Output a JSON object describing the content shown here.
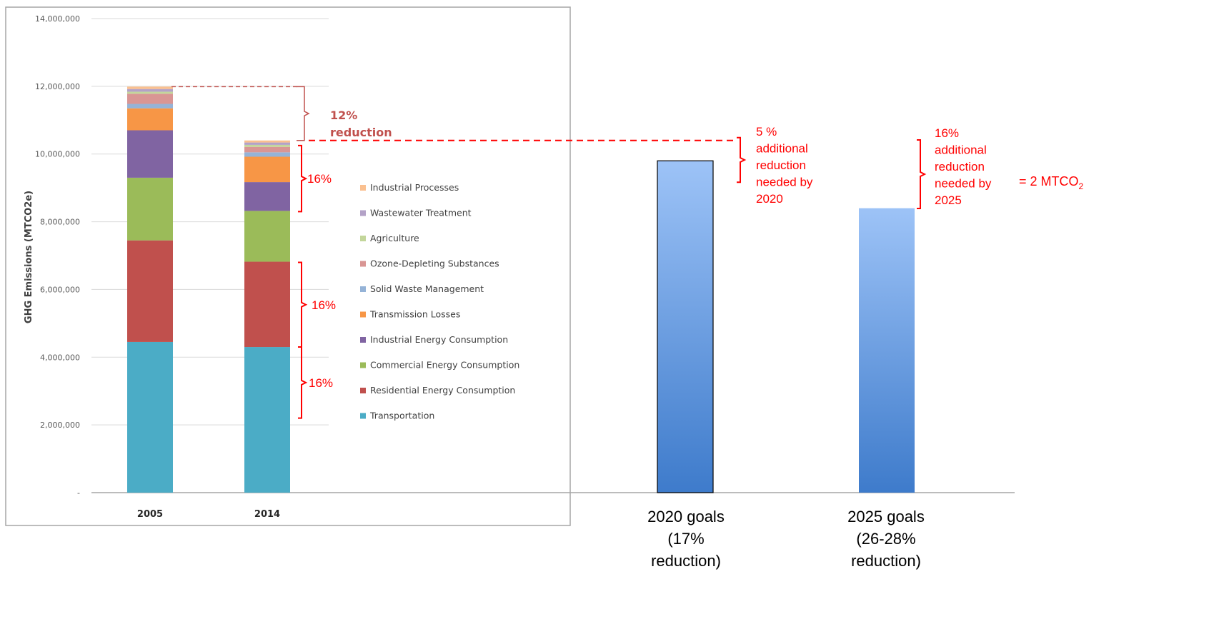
{
  "chart_data": [
    {
      "type": "bar",
      "stacked": true,
      "ylabel": "GHG Emissions (MTCO2e)",
      "ylim": [
        0,
        14000000
      ],
      "yticks": [
        "-",
        "2,000,000",
        "4,000,000",
        "6,000,000",
        "8,000,000",
        "10,000,000",
        "12,000,000",
        "14,000,000"
      ],
      "grid": true,
      "legend_position": "right",
      "categories": [
        "2005",
        "2014"
      ],
      "series": [
        {
          "name": "Transportation",
          "color": "#4BACC6",
          "values": [
            4450000,
            4300000
          ]
        },
        {
          "name": "Residential Energy Consumption",
          "color": "#C0504D",
          "values": [
            3000000,
            2520000
          ]
        },
        {
          "name": "Commercial Energy Consumption",
          "color": "#9BBB59",
          "values": [
            1850000,
            1500000
          ]
        },
        {
          "name": "Industrial Energy Consumption",
          "color": "#8064A2",
          "values": [
            1400000,
            850000
          ]
        },
        {
          "name": "Transmission Losses",
          "color": "#F79646",
          "values": [
            650000,
            750000
          ]
        },
        {
          "name": "Solid Waste Management",
          "color": "#95B3D7",
          "values": [
            130000,
            130000
          ]
        },
        {
          "name": "Ozone-Depleting Substances",
          "color": "#D99694",
          "values": [
            300000,
            160000
          ]
        },
        {
          "name": "Agriculture",
          "color": "#C3D69B",
          "values": [
            60000,
            60000
          ]
        },
        {
          "name": "Wastewater Treatment",
          "color": "#B3A2C7",
          "values": [
            80000,
            70000
          ]
        },
        {
          "name": "Industrial Processes",
          "color": "#FAC090",
          "values": [
            70000,
            60000
          ]
        }
      ],
      "legend_order": [
        "Industrial Processes",
        "Wastewater Treatment",
        "Agriculture",
        "Ozone-Depleting Substances",
        "Solid Waste Management",
        "Transmission Losses",
        "Industrial Energy Consumption",
        "Commercial Energy Consumption",
        "Residential Energy Consumption",
        "Transportation"
      ],
      "annotations": {
        "total_reduction": [
          "12%",
          "reduction"
        ],
        "sector_brackets": [
          {
            "text": "16%",
            "from": 8300000,
            "to": 10250000
          },
          {
            "text": "16%",
            "from": 4300000,
            "to": 6800000
          },
          {
            "text": "16%",
            "from": 2200000,
            "to": 4300000
          }
        ]
      }
    },
    {
      "type": "bar",
      "categories": [
        "2020 goals\n(17%\nreduction)",
        "2025 goals\n(26-28%\nreduction)"
      ],
      "values": [
        9800000,
        8400000
      ],
      "ylim": [
        0,
        14000000
      ],
      "color_top": "#9DC3F7",
      "color_bottom": "#3E7BCB",
      "annotations": {
        "reduction_2020": [
          "5 %",
          "additional",
          "reduction",
          "needed by",
          "2020"
        ],
        "reduction_2025": [
          "16%",
          "additional",
          "reduction",
          "needed by",
          "2025"
        ],
        "equivalent": "= 2 MTCO",
        "equivalent_subscript": "2"
      }
    }
  ],
  "colors": {
    "annotation_red": "#FF0000",
    "dark_red_annotation": "#C0504D",
    "gridline": "#D9D9D9",
    "tick_text": "#595959"
  }
}
